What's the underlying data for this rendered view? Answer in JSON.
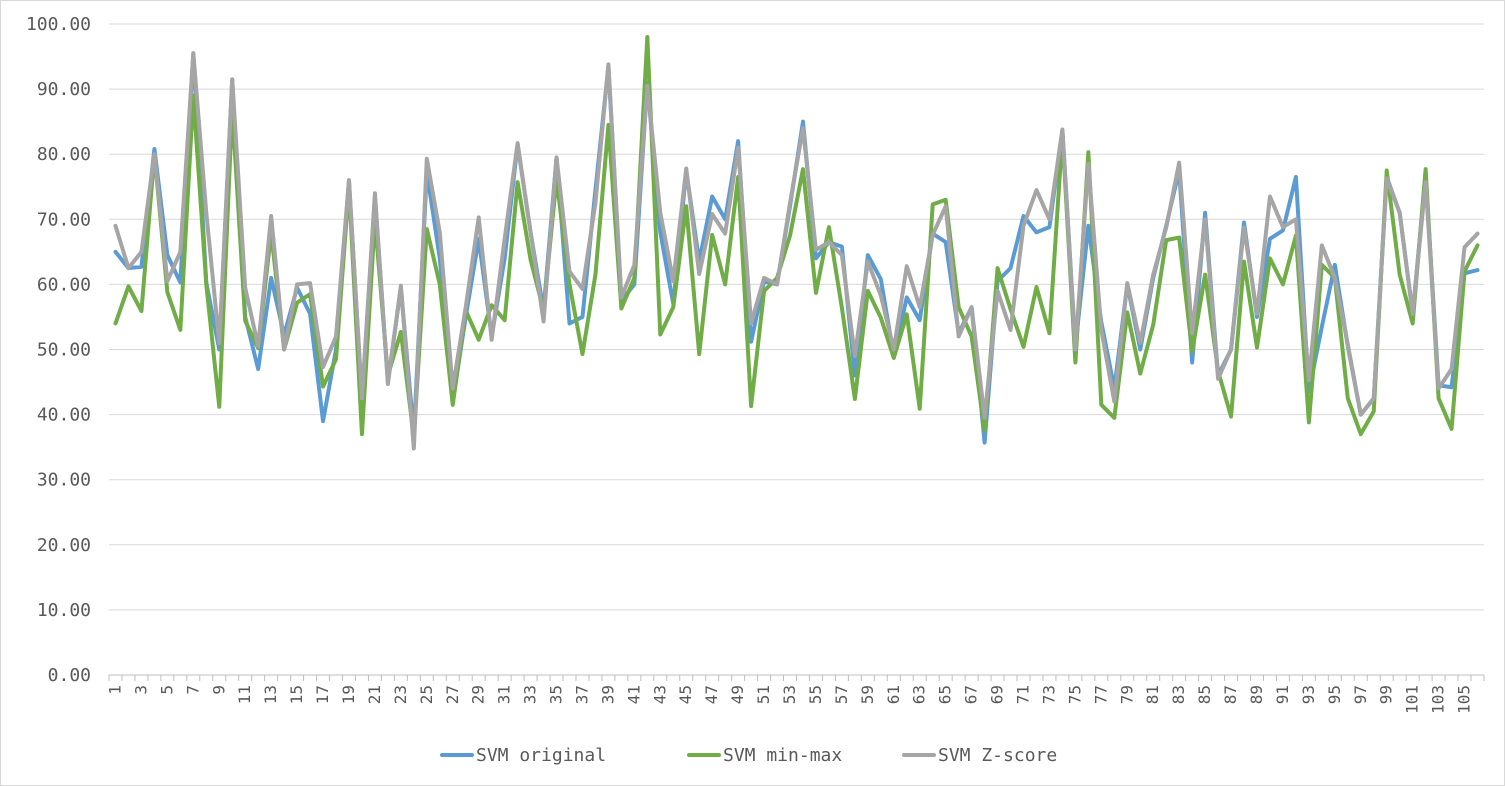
{
  "chart_data": {
    "type": "line",
    "title": "",
    "xlabel": "",
    "ylabel": "",
    "ylim": [
      0,
      100
    ],
    "y_ticks": [
      "0.00",
      "10.00",
      "20.00",
      "30.00",
      "40.00",
      "50.00",
      "60.00",
      "70.00",
      "80.00",
      "90.00",
      "100.00"
    ],
    "x_label_every": 2,
    "grid": "horizontal",
    "legend_position": "bottom",
    "colors": {
      "SVM original": "#5b9bd5",
      "SVM min-max": "#70ad47",
      "SVM Z-score": "#a5a5a5",
      "grid": "#d9d9d9",
      "text": "#595959"
    },
    "series": [
      {
        "name": "SVM original",
        "values": [
          65,
          62.5,
          62.7,
          80.8,
          64.5,
          60.3,
          95.5,
          60.3,
          50,
          91.5,
          55,
          47,
          61,
          52.2,
          59.5,
          55.5,
          39,
          50,
          76,
          42,
          73.5,
          45,
          59.5,
          37,
          77.3,
          64,
          42,
          55,
          67,
          52,
          64,
          81.5,
          68,
          56,
          79.5,
          54,
          55,
          74.5,
          93.5,
          57.5,
          60,
          91,
          68,
          57,
          77.5,
          63.5,
          73.5,
          70,
          82,
          51.2,
          60.5,
          60,
          72,
          85,
          64,
          66.5,
          65.8,
          46,
          64.5,
          60.8,
          49,
          58,
          54.5,
          67.8,
          66.5,
          52.5,
          56.5,
          35.7,
          60.5,
          62.5,
          70.5,
          68,
          68.8,
          83.7,
          50.5,
          69,
          54.2,
          44,
          60,
          50,
          61,
          69,
          77.5,
          48,
          71,
          46,
          50,
          69.5,
          55,
          67,
          68.3,
          76.5,
          43.5,
          53.5,
          63,
          50.5,
          40,
          42.5,
          76.5,
          71,
          55.5,
          76.5,
          44.5,
          44.2,
          61.7,
          62.2
        ]
      },
      {
        "name": "SVM min-max",
        "values": [
          54,
          59.7,
          55.9,
          80,
          58.8,
          53,
          89,
          60,
          41.2,
          87,
          54.4,
          50.2,
          68,
          50,
          57.2,
          58.5,
          44.3,
          48.5,
          75,
          37,
          70,
          46,
          52.7,
          36.5,
          68.5,
          60,
          41.5,
          56,
          51.5,
          56.8,
          54.5,
          75.7,
          63.8,
          56,
          76.2,
          60,
          49.3,
          61.5,
          84.5,
          56.3,
          61,
          98,
          52.3,
          56.5,
          72,
          49.3,
          67.6,
          60,
          76.5,
          41.3,
          59,
          61,
          67.5,
          77.7,
          58.7,
          68.8,
          56.4,
          42.4,
          59,
          54.9,
          48.7,
          55.4,
          40.9,
          72.3,
          73,
          56.5,
          52,
          37.5,
          62.5,
          56.2,
          50.4,
          59.6,
          52.5,
          83,
          48,
          80.3,
          41.5,
          39.5,
          55.7,
          46.3,
          53.8,
          66.8,
          67.2,
          49.7,
          61.5,
          46.7,
          39.7,
          63.5,
          50.3,
          64,
          60,
          67.5,
          38.8,
          63,
          61,
          42.5,
          37,
          40.5,
          77.5,
          61.5,
          54,
          77.7,
          42.5,
          37.8,
          62,
          66
        ]
      },
      {
        "name": "SVM Z-score",
        "values": [
          69,
          62.5,
          65,
          80,
          60.5,
          65,
          95.5,
          71,
          51,
          91.5,
          59.5,
          50.5,
          70.5,
          50,
          60,
          60.2,
          47.3,
          52,
          76,
          42.5,
          74,
          44.7,
          59.8,
          34.8,
          79.3,
          68,
          44,
          56.5,
          70.3,
          51.5,
          67,
          81.7,
          68,
          54.3,
          79.5,
          62,
          59.3,
          72.5,
          93.8,
          58,
          63,
          90.5,
          71,
          60.5,
          77.8,
          61.6,
          70.8,
          67.8,
          81,
          54,
          61,
          60,
          72.5,
          84,
          65.3,
          66.5,
          64.5,
          49,
          63.5,
          58.3,
          50,
          62.8,
          56.5,
          67.6,
          72,
          52,
          56.5,
          39.5,
          59,
          53,
          69,
          74.5,
          70,
          83.8,
          50,
          78.5,
          53,
          42,
          60.2,
          51,
          61.5,
          68.7,
          78.7,
          52.5,
          70,
          45.5,
          50,
          68.7,
          55.5,
          73.5,
          68.8,
          70,
          45.3,
          66,
          61,
          50.8,
          40,
          42.5,
          76.3,
          71,
          55.5,
          75.7,
          44,
          47,
          65.7,
          67.8
        ]
      }
    ]
  }
}
